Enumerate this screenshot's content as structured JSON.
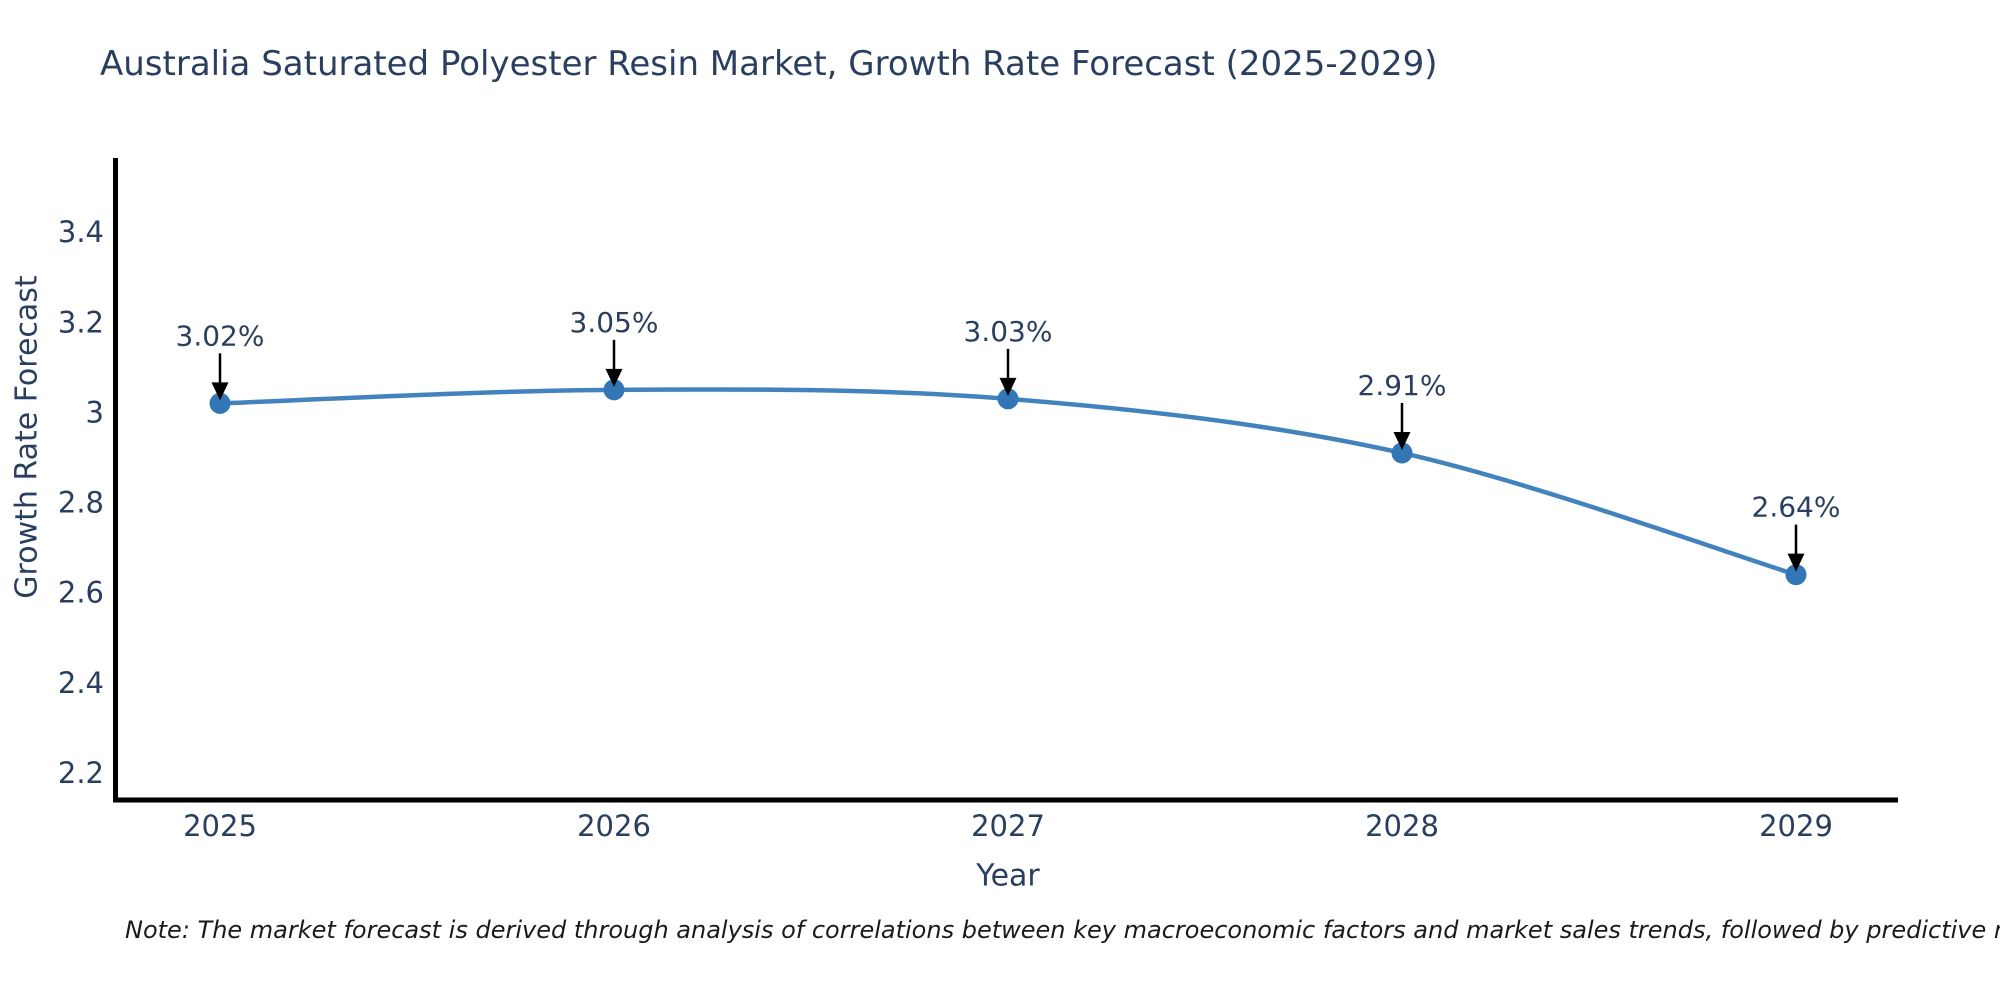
{
  "title": "Australia Saturated Polyester Resin Market, Growth Rate Forecast (2025-2029)",
  "note": "Note: The market forecast is derived through analysis of correlations between key macroeconomic factors and market sales trends, followed by predictive modeling to project future sales",
  "chart_data": {
    "type": "line",
    "title": "Australia Saturated Polyester Resin Market, Growth Rate Forecast (2025-2029)",
    "categories": [
      "2025",
      "2026",
      "2027",
      "2028",
      "2029"
    ],
    "series": [
      {
        "name": "Growth Rate Forecast",
        "values": [
          3.02,
          3.05,
          3.03,
          2.91,
          2.64
        ]
      }
    ],
    "point_labels": [
      "3.02%",
      "3.05%",
      "3.03%",
      "2.91%",
      "2.64%"
    ],
    "xlabel": "Year",
    "ylabel": "Growth Rate Forecast",
    "yticks": [
      "2.2",
      "2.4",
      "2.6",
      "2.8",
      "3",
      "3.2",
      "3.4"
    ],
    "ylim": [
      2.14,
      3.56
    ],
    "line_shape": "spline",
    "grid": false,
    "legend": false,
    "annotations_arrow": "down",
    "colors": {
      "line": "#4383bd",
      "marker": "#3276b5",
      "axis": "#000000",
      "arrow": "#000000",
      "text": "#2a3f5f"
    }
  }
}
